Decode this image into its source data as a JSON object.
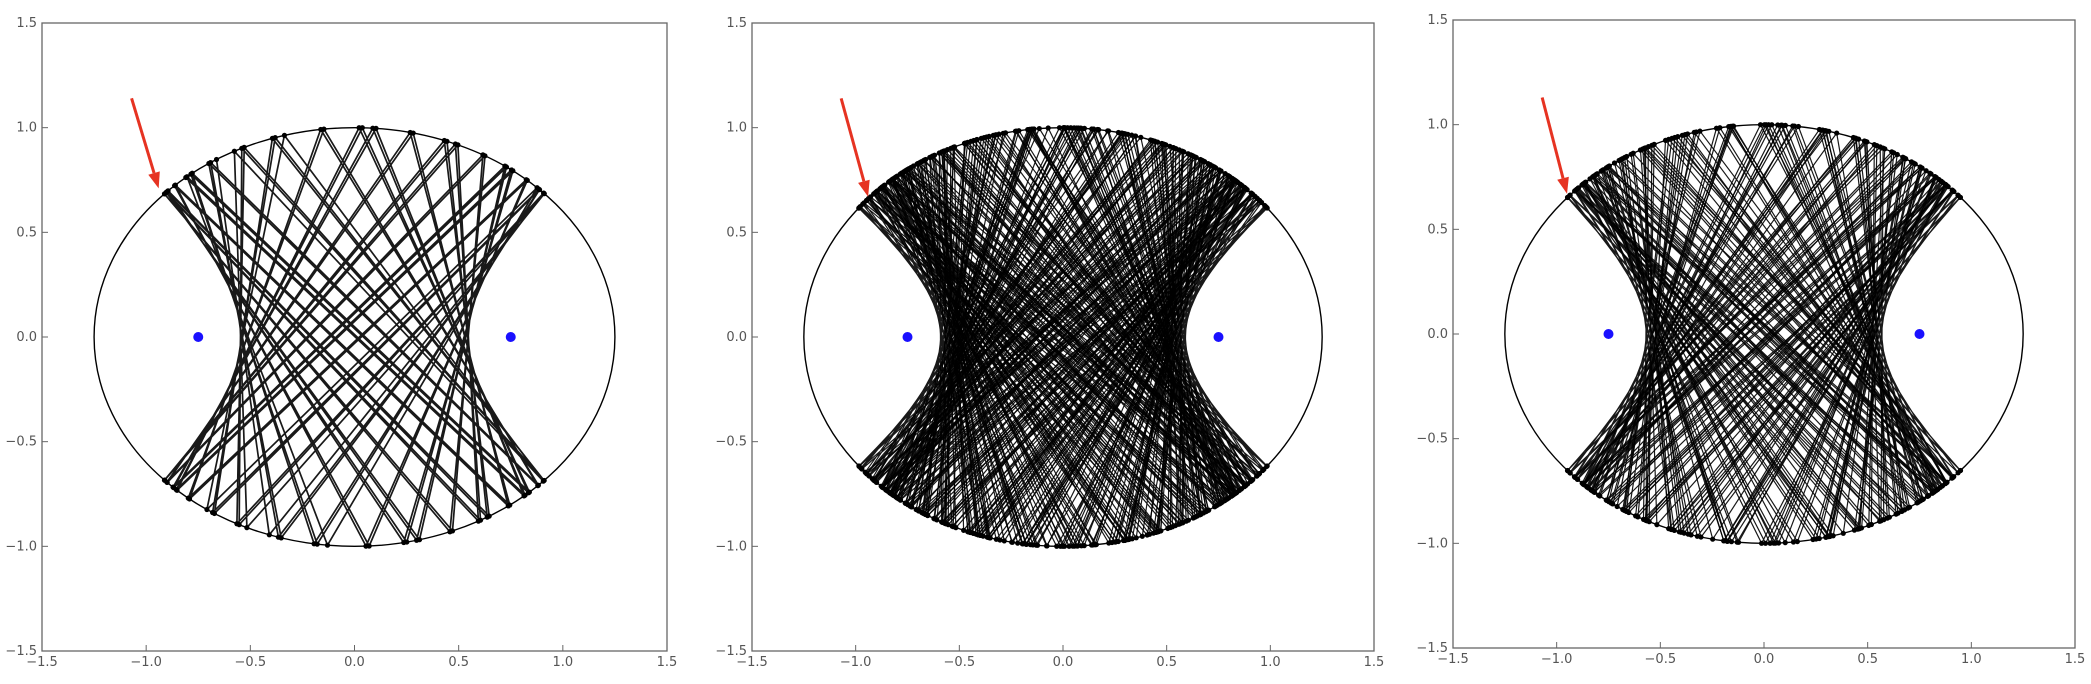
{
  "colors": {
    "chord": "#000000",
    "focus": "#1a10ff",
    "arrow": "#e63322",
    "frame": "#666666",
    "tick_label": "#555555"
  },
  "chart_data": [
    {
      "type": "scatter",
      "title": "",
      "xlabel": "",
      "ylabel": "",
      "xlim": [
        -1.5,
        1.5
      ],
      "ylim": [
        -1.5,
        1.5
      ],
      "grid": false,
      "x_ticks": [
        -1.5,
        -1.0,
        -0.5,
        0.0,
        0.5,
        1.0,
        1.5
      ],
      "y_ticks": [
        -1.5,
        -1.0,
        -0.5,
        0.0,
        0.5,
        1.0,
        1.5
      ],
      "x_tick_labels": [
        "-1.5",
        "-1.0",
        "-0.5",
        "0.0",
        "0.5",
        "1.0",
        "1.5"
      ],
      "y_tick_labels": [
        "-1.5",
        "-1.0",
        "-0.5",
        "0.0",
        "0.5",
        "1.0",
        "1.5"
      ],
      "ellipse": {
        "a": 1.25,
        "b": 1.0
      },
      "foci": [
        [
          -0.75,
          0.0
        ],
        [
          0.75,
          0.0
        ]
      ],
      "trajectory": {
        "start_angle_deg": 122,
        "bounces": 90,
        "bundle_size": 1
      },
      "arrow": {
        "from": [
          -1.07,
          1.14
        ],
        "to": [
          -0.94,
          0.71
        ]
      }
    },
    {
      "type": "scatter",
      "title": "",
      "xlabel": "",
      "ylabel": "",
      "xlim": [
        -1.5,
        1.5
      ],
      "ylim": [
        -1.5,
        1.5
      ],
      "grid": false,
      "x_ticks": [
        -1.5,
        -1.0,
        -0.5,
        0.0,
        0.5,
        1.0,
        1.5
      ],
      "y_ticks": [
        -1.5,
        -1.0,
        -0.5,
        0.0,
        0.5,
        1.0,
        1.5
      ],
      "x_tick_labels": [
        "-1.5",
        "-1.0",
        "-0.5",
        "0.0",
        "0.5",
        "1.0",
        "1.5"
      ],
      "y_tick_labels": [
        "-1.5",
        "-1.0",
        "-0.5",
        "0.0",
        "0.5",
        "1.0",
        "1.5"
      ],
      "ellipse": {
        "a": 1.25,
        "b": 1.0
      },
      "foci": [
        [
          -0.75,
          0.0
        ],
        [
          0.75,
          0.0
        ]
      ],
      "trajectory": {
        "start_angle_deg": 122,
        "bounces": 90,
        "bundle_size": 5
      },
      "arrow": {
        "from": [
          -1.07,
          1.14
        ],
        "to": [
          -0.94,
          0.67
        ]
      }
    },
    {
      "type": "scatter",
      "title": "",
      "xlabel": "",
      "ylabel": "",
      "xlim": [
        -1.5,
        1.5
      ],
      "ylim": [
        -1.5,
        1.5
      ],
      "grid": false,
      "x_ticks": [
        -1.5,
        -1.0,
        -0.5,
        0.0,
        0.5,
        1.0,
        1.5
      ],
      "y_ticks": [
        -1.5,
        -1.0,
        -0.5,
        0.0,
        0.5,
        1.0,
        1.5
      ],
      "x_tick_labels": [
        "-1.5",
        "-1.0",
        "-0.5",
        "0.0",
        "0.5",
        "1.0",
        "1.5"
      ],
      "y_tick_labels": [
        "-1.5",
        "-1.0",
        "-0.5",
        "0.0",
        "0.5",
        "1.0",
        "1.5"
      ],
      "ellipse": {
        "a": 1.25,
        "b": 1.0
      },
      "foci": [
        [
          -0.75,
          0.0
        ],
        [
          0.75,
          0.0
        ]
      ],
      "trajectory": {
        "start_angle_deg": 122,
        "bounces": 90,
        "bundle_size": 3
      },
      "arrow": {
        "from": [
          -1.07,
          1.13
        ],
        "to": [
          -0.95,
          0.67
        ]
      }
    }
  ]
}
